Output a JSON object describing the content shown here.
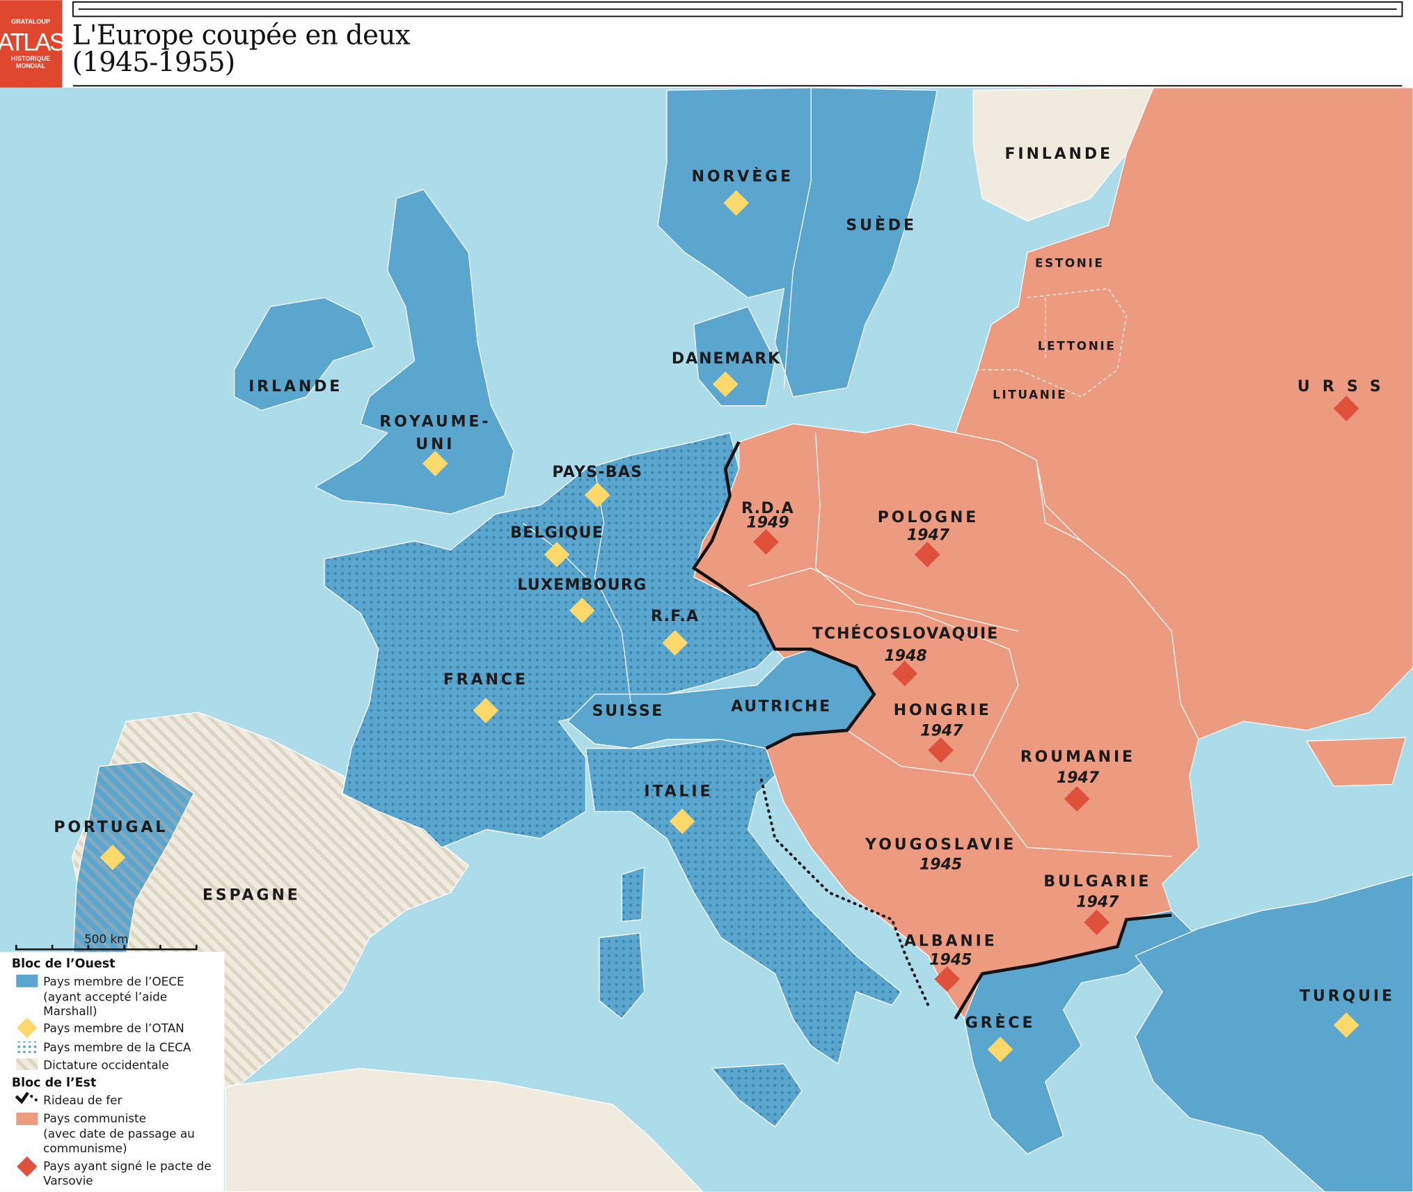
{
  "header": {
    "logo": {
      "top": "GRATALOUP",
      "main": "ATLAS",
      "bottom1": "HISTORIQUE",
      "bottom2": "MONDIAL"
    },
    "title_line1": "L'Europe coupée en deux",
    "title_line2": "(1945-1955)"
  },
  "colors": {
    "sea": "#acdbea",
    "oece": "#5ba6cf",
    "communist": "#ec9a80",
    "neutral": "#f1ebdf",
    "otan_diamond": "#fdd86b",
    "varsovie_diamond": "#e0513c",
    "logo": "#e0472f"
  },
  "countries": {
    "norvege": "NORVÈGE",
    "suede": "SUÈDE",
    "finlande": "FINLANDE",
    "estonie": "ESTONIE",
    "lettonie": "LETTONIE",
    "lituanie": "LITUANIE",
    "urss": "URSS",
    "irlande": "IRLANDE",
    "royaume_uni_1": "ROYAUME-",
    "royaume_uni_2": "UNI",
    "danemark": "DANEMARK",
    "pays_bas": "PAYS-BAS",
    "belgique": "BELGIQUE",
    "luxembourg": "LUXEMBOURG",
    "rfa": "R.F.A",
    "france": "FRANCE",
    "suisse": "SUISSE",
    "autriche": "AUTRICHE",
    "italie": "ITALIE",
    "portugal": "PORTUGAL",
    "espagne": "ESPAGNE",
    "rda": "R.D.A",
    "pologne": "POLOGNE",
    "tchecoslovaquie": "TCHÉCOSLOVAQUIE",
    "hongrie": "HONGRIE",
    "roumanie": "ROUMANIE",
    "yougoslavie": "YOUGOSLAVIE",
    "bulgarie": "BULGARIE",
    "albanie": "ALBANIE",
    "grece": "GRÈCE",
    "turquie": "TURQUIE"
  },
  "years": {
    "rda": "1949",
    "pologne": "1947",
    "tchecoslovaquie": "1948",
    "hongrie": "1947",
    "roumanie": "1947",
    "yougoslavie": "1945",
    "bulgarie": "1947",
    "albanie": "1945"
  },
  "scale": {
    "label": "500 km"
  },
  "legend": {
    "west_title": "Bloc de l’Ouest",
    "oece_1": "Pays membre de l’OECE",
    "oece_2": "(ayant accepté l’aide",
    "oece_3": "Marshall)",
    "otan": "Pays membre de l’OTAN",
    "ceca": "Pays membre de la CECA",
    "dictature": "Dictature occidentale",
    "east_title": "Bloc de l’Est",
    "rideau": "Rideau de fer",
    "communiste_1": "Pays communiste",
    "communiste_2": "(avec date de passage au",
    "communiste_3": "communisme)",
    "varsovie_1": "Pays ayant signé le pacte de",
    "varsovie_2": "Varsovie"
  }
}
